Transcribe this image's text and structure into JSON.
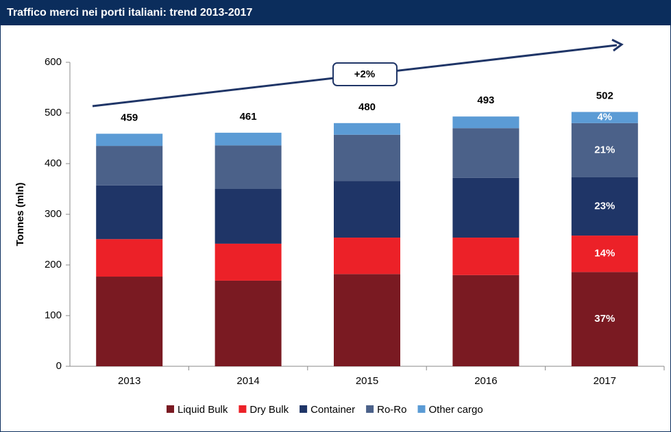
{
  "chart_data": {
    "type": "stacked_bar",
    "title": "Traffico merci nei porti italiani: trend 2013-2017",
    "y_label": "Tonnes (mln)",
    "categories": [
      "2013",
      "2014",
      "2015",
      "2016",
      "2017"
    ],
    "series": [
      {
        "name": "Liquid Bulk",
        "color": "#7a1a22",
        "values": [
          177,
          169,
          182,
          180,
          186
        ],
        "share_label": "37%"
      },
      {
        "name": "Dry Bulk",
        "color": "#ec2128",
        "values": [
          74,
          73,
          72,
          74,
          72
        ],
        "share_label": "14%"
      },
      {
        "name": "Container",
        "color": "#1f3567",
        "values": [
          106,
          108,
          112,
          118,
          115
        ],
        "share_label": "23%"
      },
      {
        "name": "Ro-Ro",
        "color": "#4b6189",
        "values": [
          78,
          86,
          91,
          98,
          107
        ],
        "share_label": "21%"
      },
      {
        "name": "Other cargo",
        "color": "#5b9bd5",
        "values": [
          24,
          25,
          23,
          23,
          22
        ],
        "share_label": "4%"
      }
    ],
    "totals": [
      459,
      461,
      480,
      493,
      502
    ],
    "annotation": "+2%",
    "ylim": [
      0,
      600
    ],
    "yticks": [
      0,
      100,
      200,
      300,
      400,
      500,
      600
    ]
  }
}
